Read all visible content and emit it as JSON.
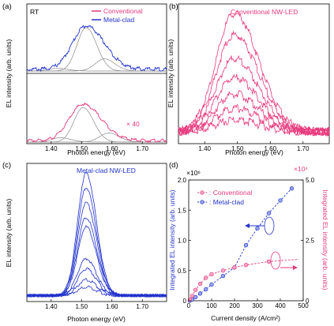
{
  "colors": {
    "conventional": "#e8397d",
    "metal_clad": "#2233cc",
    "fit": "#8a8a8a",
    "axis": "#000000"
  },
  "chart_data": [
    {
      "panel": "(a)",
      "type": "line",
      "condition_label": "RT",
      "xlabel": "Photon energy (eV)",
      "ylabel": "EL intensity (arb. units)",
      "xlim": [
        1.32,
        1.78
      ],
      "xticks": [
        "1.40",
        "1.50",
        "1.60",
        "1.70"
      ],
      "legend": [
        "Conventional",
        "Metal-clad"
      ],
      "legend_position": "top-right",
      "scale_annotation": "× 40",
      "subplots": [
        {
          "series": "Metal-clad",
          "peak_ev": 1.515,
          "fit_peaks_ev": [
            1.42,
            1.515,
            1.575
          ]
        },
        {
          "series": "Conventional",
          "peak_ev": 1.505,
          "fit_peaks_ev": [
            1.43,
            1.505,
            1.59
          ]
        }
      ]
    },
    {
      "panel": "(b)",
      "type": "line",
      "title": "Conventional NW-LED",
      "xlabel": "Photon energy (eV)",
      "ylabel": "EL intensity (arb. units)",
      "xlim": [
        1.32,
        1.78
      ],
      "xticks": [
        "1.40",
        "1.50",
        "1.60",
        "1.70"
      ],
      "series": [
        {
          "peak_ev": 1.49,
          "relative_peak": 1.0
        },
        {
          "peak_ev": 1.49,
          "relative_peak": 0.82
        },
        {
          "peak_ev": 1.49,
          "relative_peak": 0.62
        },
        {
          "peak_ev": 1.49,
          "relative_peak": 0.46
        },
        {
          "peak_ev": 1.49,
          "relative_peak": 0.32
        },
        {
          "peak_ev": 1.49,
          "relative_peak": 0.2
        },
        {
          "peak_ev": 1.49,
          "relative_peak": 0.1
        }
      ]
    },
    {
      "panel": "(c)",
      "type": "line",
      "title": "Metal-clad NW-LED",
      "xlabel": "Photon energy (eV)",
      "ylabel": "EL intensity (arb. units)",
      "xlim": [
        1.32,
        1.78
      ],
      "xticks": [
        "1.40",
        "1.50",
        "1.60",
        "1.70"
      ],
      "series": [
        {
          "peak_ev": 1.515,
          "relative_peak": 1.0
        },
        {
          "peak_ev": 1.515,
          "relative_peak": 0.88
        },
        {
          "peak_ev": 1.515,
          "relative_peak": 0.76
        },
        {
          "peak_ev": 1.515,
          "relative_peak": 0.64
        },
        {
          "peak_ev": 1.515,
          "relative_peak": 0.56
        },
        {
          "peak_ev": 1.515,
          "relative_peak": 0.3
        },
        {
          "peak_ev": 1.515,
          "relative_peak": 0.22
        },
        {
          "peak_ev": 1.515,
          "relative_peak": 0.13
        },
        {
          "peak_ev": 1.515,
          "relative_peak": 0.07
        }
      ]
    },
    {
      "panel": "(d)",
      "type": "scatter",
      "xlabel": "Current density (A/cm²)",
      "ylabel_left": "Integrated EL intensity (arb. units)",
      "ylabel_right": "Integrated EL intensity (arb. units)",
      "left_multiplier": "×10⁶",
      "right_multiplier": "×10⁴",
      "xlim": [
        0,
        500
      ],
      "xticks": [
        "0",
        "100",
        "200",
        "300",
        "400",
        "500"
      ],
      "ylim_left": [
        0,
        2.0
      ],
      "yticks_left": [
        "0",
        "0.5",
        "1.0",
        "1.5",
        "2.0"
      ],
      "ylim_right": [
        0,
        5.0
      ],
      "yticks_right": [
        "0",
        "2.5",
        "5.0"
      ],
      "legend": [
        ": Conventional",
        ": Metal-clad"
      ],
      "legend_position": "top-left",
      "series": [
        {
          "name": "Metal-clad",
          "axis": "left",
          "x": [
            5,
            15,
            30,
            50,
            75,
            100,
            150,
            200,
            250,
            300,
            350,
            400,
            450
          ],
          "y": [
            0.0,
            0.02,
            0.06,
            0.12,
            0.19,
            0.27,
            0.41,
            0.55,
            0.92,
            1.2,
            1.45,
            1.66,
            1.86
          ]
        },
        {
          "name": "Conventional",
          "axis": "right",
          "x": [
            5,
            15,
            30,
            50,
            75,
            100,
            150,
            200,
            250,
            350
          ],
          "y": [
            0.05,
            0.2,
            0.45,
            0.7,
            0.95,
            1.1,
            1.25,
            1.38,
            1.48,
            1.62
          ]
        }
      ]
    }
  ]
}
